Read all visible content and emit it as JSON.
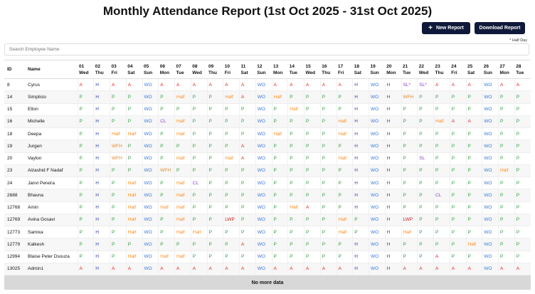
{
  "page": {
    "title": "Monthly Attendance Report (1st Oct 2025 - 31st Oct 2025)",
    "new_report_label": "New Report",
    "download_label": "Download Report",
    "note": "* Half Day",
    "search_placeholder": "Search Employee Name",
    "footer": "No more data"
  },
  "table": {
    "headers": [
      "ID",
      "Name"
    ],
    "days": [
      {
        "d": "01",
        "w": "Wed"
      },
      {
        "d": "02",
        "w": "Thu"
      },
      {
        "d": "03",
        "w": "Fri"
      },
      {
        "d": "04",
        "w": "Sat"
      },
      {
        "d": "05",
        "w": "Sun"
      },
      {
        "d": "06",
        "w": "Mon"
      },
      {
        "d": "07",
        "w": "Tue"
      },
      {
        "d": "08",
        "w": "Wed"
      },
      {
        "d": "09",
        "w": "Thu"
      },
      {
        "d": "10",
        "w": "Fri"
      },
      {
        "d": "11",
        "w": "Sat"
      },
      {
        "d": "12",
        "w": "Sun"
      },
      {
        "d": "13",
        "w": "Mon"
      },
      {
        "d": "14",
        "w": "Tue"
      },
      {
        "d": "15",
        "w": "Wed"
      },
      {
        "d": "16",
        "w": "Thu"
      },
      {
        "d": "17",
        "w": "Fri"
      },
      {
        "d": "18",
        "w": "Sat"
      },
      {
        "d": "19",
        "w": "Sun"
      },
      {
        "d": "20",
        "w": "Mon"
      },
      {
        "d": "21",
        "w": "Tue"
      },
      {
        "d": "22",
        "w": "Wed"
      },
      {
        "d": "23",
        "w": "Thu"
      },
      {
        "d": "24",
        "w": "Fri"
      },
      {
        "d": "25",
        "w": "Sat"
      },
      {
        "d": "26",
        "w": "Sun"
      },
      {
        "d": "27",
        "w": "Mon"
      },
      {
        "d": "28",
        "w": "Tue"
      }
    ],
    "rows": [
      {
        "id": "8",
        "name": "Cyrus",
        "days": [
          "A",
          "H",
          "A",
          "A",
          "WO",
          "A",
          "A",
          "A",
          "A",
          "A",
          "A",
          "WO",
          "A",
          "A",
          "A",
          "A",
          "A",
          "H",
          "WO",
          "H",
          "SL*",
          "SL*",
          "A",
          "A",
          "A",
          "WO",
          "A",
          "A"
        ]
      },
      {
        "id": "14",
        "name": "Simplicio",
        "days": [
          "P",
          "H",
          "P",
          "P",
          "WO",
          "P",
          "Half",
          "P",
          "P",
          "Half",
          "A",
          "WO",
          "Half",
          "P",
          "P",
          "P",
          "P",
          "H",
          "WO",
          "H",
          "WFH",
          "P",
          "P",
          "P",
          "P",
          "WO",
          "P",
          "P"
        ]
      },
      {
        "id": "15",
        "name": "Elton",
        "days": [
          "P",
          "H",
          "P",
          "P",
          "WO",
          "P",
          "P",
          "P",
          "P",
          "P",
          "P",
          "WO",
          "P",
          "Half",
          "P",
          "P",
          "P",
          "H",
          "WO",
          "H",
          "P",
          "P",
          "P",
          "P",
          "P",
          "WO",
          "P",
          "P"
        ]
      },
      {
        "id": "16",
        "name": "Michelle",
        "days": [
          "P",
          "H",
          "P",
          "P",
          "WO",
          "CL",
          "Half",
          "P",
          "P",
          "P",
          "P",
          "WO",
          "P",
          "P",
          "P",
          "P",
          "Half",
          "H",
          "WO",
          "H",
          "P",
          "P",
          "Half",
          "A",
          "A",
          "WO",
          "P",
          "P"
        ]
      },
      {
        "id": "18",
        "name": "Deepa",
        "days": [
          "P",
          "H",
          "Half",
          "Half",
          "WO",
          "P",
          "Half",
          "P",
          "P",
          "P",
          "P",
          "WO",
          "Half",
          "P",
          "P",
          "P",
          "Half",
          "H",
          "WO",
          "H",
          "P",
          "P",
          "P",
          "P",
          "P",
          "WO",
          "P",
          "P"
        ]
      },
      {
        "id": "19",
        "name": "Jurgen",
        "days": [
          "P",
          "H",
          "WFH",
          "P",
          "WO",
          "P",
          "P",
          "P",
          "P",
          "P",
          "A",
          "WO",
          "P",
          "P",
          "P",
          "P",
          "P",
          "H",
          "WO",
          "H",
          "P",
          "P",
          "P",
          "P",
          "P",
          "WO",
          "P",
          "P"
        ]
      },
      {
        "id": "20",
        "name": "Vaylon",
        "days": [
          "P",
          "H",
          "WFH",
          "P",
          "WO",
          "P",
          "Half",
          "P",
          "P",
          "Half",
          "A",
          "WO",
          "P",
          "P",
          "P",
          "P",
          "Half",
          "H",
          "WO",
          "H",
          "P",
          "SL",
          "P",
          "P",
          "P",
          "WO",
          "P",
          "P"
        ]
      },
      {
        "id": "23",
        "name": "Alzashid F Nadaf",
        "days": [
          "P",
          "H",
          "P",
          "P",
          "WO",
          "WFH",
          "P",
          "P",
          "P",
          "P",
          "P",
          "WO",
          "P",
          "P",
          "P",
          "P",
          "P",
          "H",
          "WO",
          "H",
          "P",
          "P",
          "P",
          "P",
          "P",
          "WO",
          "Half",
          "P"
        ]
      },
      {
        "id": "24",
        "name": "Janvi Pereira",
        "days": [
          "P",
          "H",
          "P",
          "Half",
          "WO",
          "P",
          "Half",
          "CL",
          "P",
          "P",
          "P",
          "WO",
          "P",
          "P",
          "P",
          "P",
          "P",
          "H",
          "WO",
          "H",
          "P",
          "P",
          "P",
          "P",
          "P",
          "WO",
          "P",
          "P"
        ]
      },
      {
        "id": "2688",
        "name": "Bhavna",
        "days": [
          "P",
          "H",
          "P",
          "Half",
          "WO",
          "P",
          "Half",
          "P",
          "P",
          "P",
          "P",
          "WO",
          "P",
          "P",
          "P",
          "P",
          "P",
          "H",
          "WO",
          "H",
          "P",
          "P",
          "CL",
          "P",
          "P",
          "WO",
          "P",
          "P"
        ]
      },
      {
        "id": "12768",
        "name": "Amin",
        "days": [
          "P",
          "H",
          "P",
          "Half",
          "WO",
          "Half",
          "Half",
          "P",
          "P",
          "P",
          "P",
          "WO",
          "P",
          "Half",
          "A",
          "P",
          "P",
          "H",
          "WO",
          "H",
          "P",
          "P",
          "P",
          "P",
          "P",
          "WO",
          "P",
          "P"
        ]
      },
      {
        "id": "12769",
        "name": "Avina Gosavi",
        "days": [
          "P",
          "H",
          "P",
          "Half",
          "WO",
          "P",
          "Half",
          "P",
          "P",
          "LWP",
          "P",
          "WO",
          "P",
          "P",
          "P",
          "P",
          "Half",
          "P",
          "WO",
          "H",
          "LWP",
          "P",
          "P",
          "P",
          "P",
          "WO",
          "P",
          "P"
        ]
      },
      {
        "id": "12773",
        "name": "Samixa",
        "days": [
          "P",
          "H",
          "P",
          "Half",
          "WO",
          "P",
          "Half",
          "Half",
          "P",
          "P",
          "P",
          "WO",
          "P",
          "P",
          "P",
          "P",
          "Half",
          "P",
          "WO",
          "H",
          "Half",
          "P",
          "P",
          "P",
          "P",
          "WO",
          "P",
          "P"
        ]
      },
      {
        "id": "12779",
        "name": "Kalkesh",
        "days": [
          "P",
          "H",
          "P",
          "P",
          "WO",
          "P",
          "P",
          "P",
          "P",
          "P",
          "A",
          "WO",
          "P",
          "P",
          "P",
          "P",
          "P",
          "H",
          "WO",
          "H",
          "P",
          "P",
          "P",
          "P",
          "Half",
          "WO",
          "P",
          "P"
        ]
      },
      {
        "id": "12994",
        "name": "Blaise Peter Dsouza",
        "days": [
          "P",
          "H",
          "P",
          "Half",
          "WO",
          "Half",
          "Half",
          "P",
          "P",
          "P",
          "P",
          "WO",
          "P",
          "P",
          "P",
          "P",
          "P",
          "H",
          "WO",
          "H",
          "P",
          "P",
          "A",
          "P",
          "P",
          "WO",
          "P",
          "P"
        ]
      },
      {
        "id": "13025",
        "name": "Admin1",
        "days": [
          "A",
          "H",
          "A",
          "A",
          "WO",
          "A",
          "A",
          "A",
          "A",
          "A",
          "A",
          "WO",
          "A",
          "A",
          "A",
          "A",
          "A",
          "H",
          "WO",
          "H",
          "A",
          "A",
          "A",
          "A",
          "A",
          "WO",
          "A",
          "A"
        ]
      }
    ]
  },
  "status_colors": {
    "P": "#2e9e3e",
    "H": "#3341b0",
    "A": "#e02020",
    "WO": "#3a78d8",
    "Half": "#ff8c1a",
    "CL": "#8f3fbf",
    "SL": "#8f3fbf",
    "WFH": "#e38a2a",
    "LWP": "#c21f1f"
  }
}
